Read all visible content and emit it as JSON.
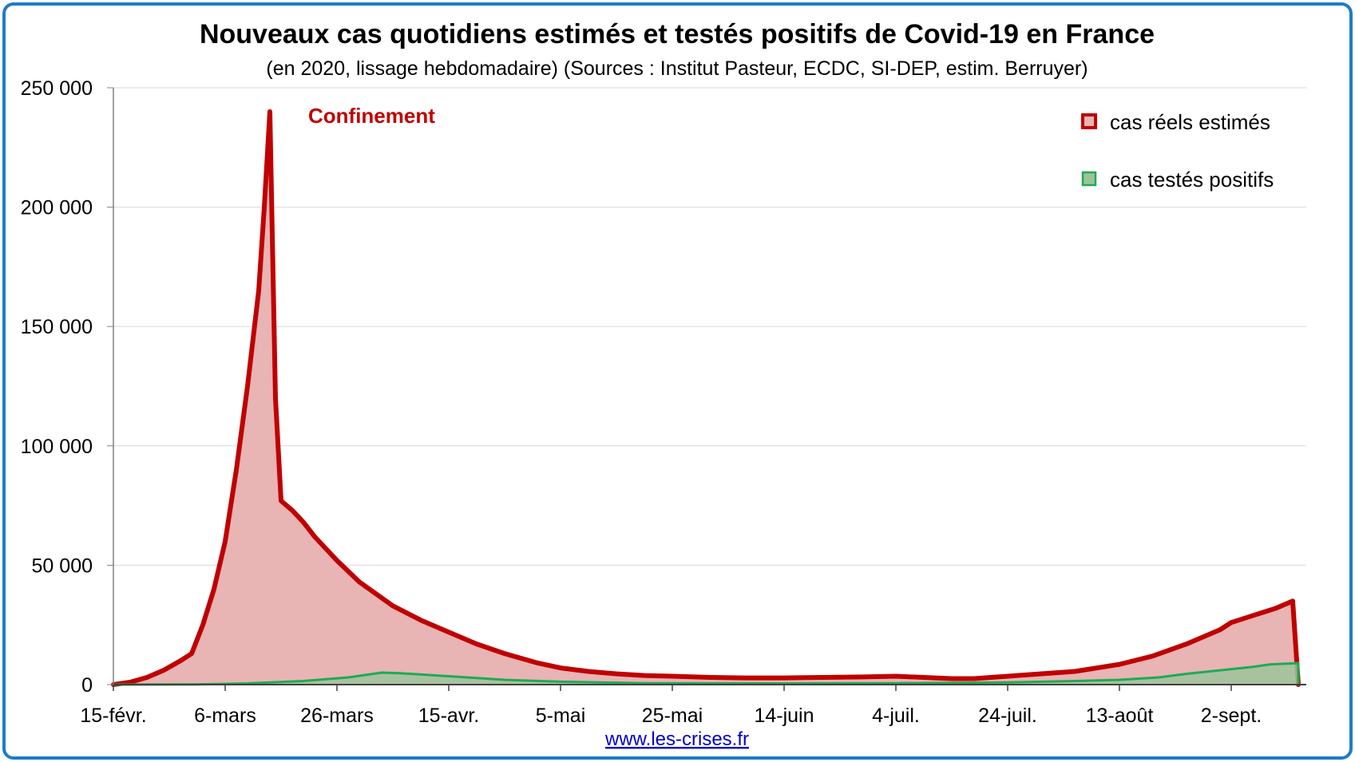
{
  "chart_data": {
    "type": "area",
    "title": "Nouveaux cas quotidiens estimés et testés positifs de Covid-19 en France",
    "subtitle": "(en 2020, lissage hebdomadaire) (Sources : Institut Pasteur, ECDC, SI-DEP, estim. Berruyer)",
    "x_tick_labels": [
      "15-févr.",
      "6-mars",
      "26-mars",
      "15-avr.",
      "5-mai",
      "25-mai",
      "14-juin",
      "4-juil.",
      "24-juil.",
      "13-août",
      "2-sept."
    ],
    "y_tick_labels": [
      "0",
      "50 000",
      "100 000",
      "150 000",
      "200 000",
      "250 000"
    ],
    "ylim": [
      0,
      250000
    ],
    "grid": true,
    "legend_position": "top-right",
    "annotation": "Confinement",
    "series": [
      {
        "name": "cas réels estimés",
        "color": "#c00000",
        "fill": "#e8b4b4",
        "points": [
          [
            "2020-02-15",
            0
          ],
          [
            "2020-02-18",
            1000
          ],
          [
            "2020-02-21",
            3000
          ],
          [
            "2020-02-24",
            6000
          ],
          [
            "2020-02-27",
            10000
          ],
          [
            "2020-02-29",
            13000
          ],
          [
            "2020-03-02",
            25000
          ],
          [
            "2020-03-04",
            40000
          ],
          [
            "2020-03-06",
            60000
          ],
          [
            "2020-03-08",
            90000
          ],
          [
            "2020-03-10",
            125000
          ],
          [
            "2020-03-12",
            165000
          ],
          [
            "2020-03-13",
            200000
          ],
          [
            "2020-03-14",
            240000
          ],
          [
            "2020-03-15",
            120000
          ],
          [
            "2020-03-16",
            77000
          ],
          [
            "2020-03-18",
            73000
          ],
          [
            "2020-03-20",
            68000
          ],
          [
            "2020-03-22",
            62000
          ],
          [
            "2020-03-26",
            52000
          ],
          [
            "2020-03-30",
            43000
          ],
          [
            "2020-04-05",
            33000
          ],
          [
            "2020-04-10",
            27000
          ],
          [
            "2020-04-15",
            22000
          ],
          [
            "2020-04-20",
            17000
          ],
          [
            "2020-04-25",
            13000
          ],
          [
            "2020-05-01",
            9000
          ],
          [
            "2020-05-05",
            7000
          ],
          [
            "2020-05-10",
            5500
          ],
          [
            "2020-05-15",
            4500
          ],
          [
            "2020-05-20",
            3800
          ],
          [
            "2020-05-25",
            3500
          ],
          [
            "2020-06-01",
            3000
          ],
          [
            "2020-06-07",
            2800
          ],
          [
            "2020-06-14",
            2800
          ],
          [
            "2020-06-21",
            3000
          ],
          [
            "2020-06-28",
            3200
          ],
          [
            "2020-07-04",
            3500
          ],
          [
            "2020-07-09",
            3000
          ],
          [
            "2020-07-14",
            2500
          ],
          [
            "2020-07-18",
            2500
          ],
          [
            "2020-07-24",
            3500
          ],
          [
            "2020-07-30",
            4500
          ],
          [
            "2020-08-05",
            5500
          ],
          [
            "2020-08-13",
            8500
          ],
          [
            "2020-08-19",
            12000
          ],
          [
            "2020-08-25",
            17000
          ],
          [
            "2020-08-31",
            23000
          ],
          [
            "2020-09-02",
            26000
          ],
          [
            "2020-09-06",
            29000
          ],
          [
            "2020-09-10",
            32000
          ],
          [
            "2020-09-13",
            35000
          ],
          [
            "2020-09-14",
            0
          ]
        ]
      },
      {
        "name": "cas testés positifs",
        "color": "#1faa55",
        "fill": "#9cc49c",
        "points": [
          [
            "2020-02-15",
            0
          ],
          [
            "2020-03-01",
            100
          ],
          [
            "2020-03-10",
            500
          ],
          [
            "2020-03-20",
            1500
          ],
          [
            "2020-03-28",
            3000
          ],
          [
            "2020-04-03",
            5000
          ],
          [
            "2020-04-06",
            4800
          ],
          [
            "2020-04-15",
            3500
          ],
          [
            "2020-04-25",
            2000
          ],
          [
            "2020-05-05",
            1200
          ],
          [
            "2020-05-20",
            600
          ],
          [
            "2020-06-14",
            500
          ],
          [
            "2020-07-04",
            600
          ],
          [
            "2020-07-24",
            900
          ],
          [
            "2020-08-05",
            1500
          ],
          [
            "2020-08-13",
            2000
          ],
          [
            "2020-08-20",
            3000
          ],
          [
            "2020-08-25",
            4500
          ],
          [
            "2020-09-02",
            6500
          ],
          [
            "2020-09-06",
            7500
          ],
          [
            "2020-09-09",
            8500
          ],
          [
            "2020-09-14",
            9000
          ],
          [
            "2020-09-14",
            0
          ]
        ]
      }
    ],
    "footer_link": "www.les-crises.fr"
  }
}
